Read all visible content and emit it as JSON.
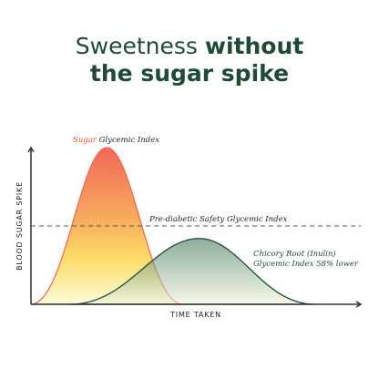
{
  "title": {
    "line1_light": "Sweetness ",
    "line1_bold": "without",
    "line2_bold": "the sugar spike"
  },
  "chart_data": {
    "type": "area",
    "xlabel": "TIME TAKEN",
    "ylabel": "BLOOD SUGAR SPIKE",
    "xlim": [
      0,
      100
    ],
    "ylim": [
      0,
      100
    ],
    "grid": false,
    "threshold": {
      "value": 50,
      "label": "Pre-diabetic Safety Glycemic Index"
    },
    "series": [
      {
        "name_highlight": "Sugar",
        "name_rest": " Glycemic Index",
        "peak_x": 23,
        "peak_y": 100,
        "start_x": 0,
        "end_x": 46,
        "color": "#f0624f"
      },
      {
        "name": "Chicory Root (Inulin)",
        "note": "Glycemic Index 58% lower",
        "peak_x": 51,
        "peak_y": 42,
        "start_x": 12,
        "end_x": 86,
        "color": "#1f4a36"
      }
    ],
    "colors": {
      "axis": "#333333",
      "sugar_top": "#f05a4a",
      "sugar_mid": "#fcd85a",
      "sugar_bottom": "#fbfbd6",
      "inulin_top": "#2e6a4e",
      "inulin_bottom": "#eff3d9"
    }
  }
}
